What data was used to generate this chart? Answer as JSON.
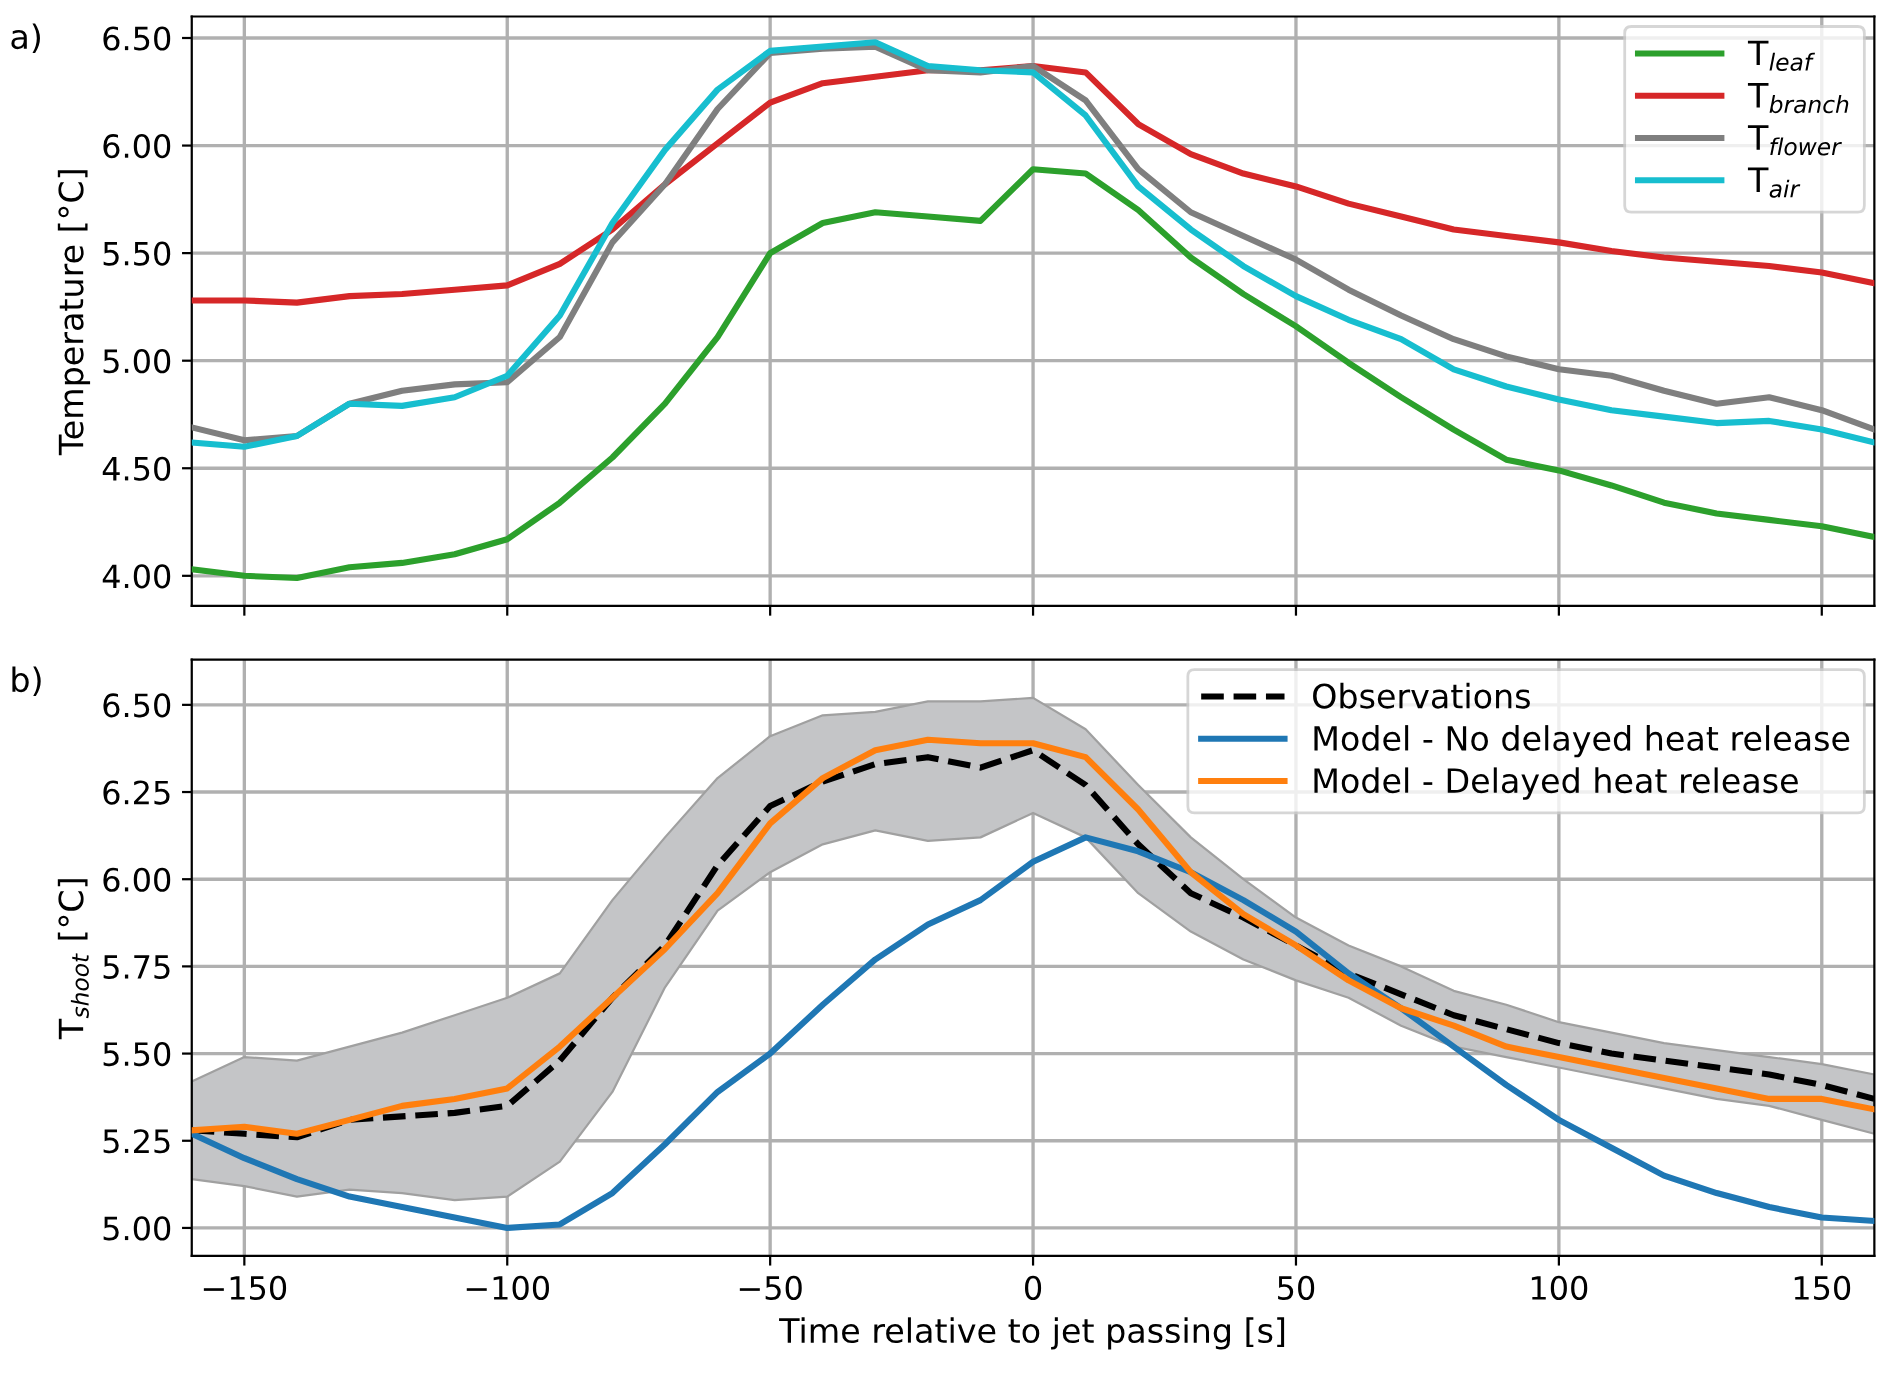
{
  "chart_data": [
    {
      "type": "line",
      "ylabel": "Temperature [°C]",
      "annotations": [
        "a)"
      ],
      "x": [
        -160,
        -150,
        -140,
        -130,
        -120,
        -110,
        -100,
        -90,
        -80,
        -70,
        -60,
        -50,
        -40,
        -30,
        -20,
        -10,
        0,
        10,
        20,
        30,
        40,
        50,
        60,
        70,
        80,
        90,
        100,
        110,
        120,
        130,
        140,
        150,
        160
      ],
      "series": [
        {
          "name": "T$_{leaf}$",
          "color": "#2ca02c",
          "values": [
            4.03,
            4.0,
            3.99,
            4.04,
            4.06,
            4.1,
            4.17,
            4.34,
            4.55,
            4.8,
            5.11,
            5.5,
            5.64,
            5.69,
            5.67,
            5.65,
            5.89,
            5.87,
            5.7,
            5.48,
            5.31,
            5.16,
            4.99,
            4.83,
            4.68,
            4.54,
            4.49,
            4.42,
            4.34,
            4.29,
            4.26,
            4.23,
            4.18
          ]
        },
        {
          "name": "T$_{branch}$",
          "color": "#d62728",
          "values": [
            5.28,
            5.28,
            5.27,
            5.3,
            5.31,
            5.33,
            5.35,
            5.45,
            5.61,
            5.82,
            6.01,
            6.2,
            6.29,
            6.32,
            6.35,
            6.35,
            6.37,
            6.34,
            6.1,
            5.96,
            5.87,
            5.81,
            5.73,
            5.67,
            5.61,
            5.58,
            5.55,
            5.51,
            5.48,
            5.46,
            5.44,
            5.41,
            5.36
          ]
        },
        {
          "name": "T$_{flower}$",
          "color": "#7f7f7f",
          "values": [
            4.69,
            4.63,
            4.65,
            4.8,
            4.86,
            4.89,
            4.9,
            5.11,
            5.55,
            5.82,
            6.17,
            6.43,
            6.45,
            6.46,
            6.35,
            6.34,
            6.37,
            6.21,
            5.89,
            5.69,
            5.58,
            5.47,
            5.33,
            5.21,
            5.1,
            5.02,
            4.96,
            4.93,
            4.86,
            4.8,
            4.83,
            4.77,
            4.68
          ]
        },
        {
          "name": "T$_{air}$",
          "color": "#17becf",
          "values": [
            4.62,
            4.6,
            4.65,
            4.8,
            4.79,
            4.83,
            4.93,
            5.21,
            5.64,
            5.98,
            6.26,
            6.44,
            6.46,
            6.48,
            6.37,
            6.35,
            6.34,
            6.14,
            5.81,
            5.61,
            5.44,
            5.3,
            5.19,
            5.1,
            4.96,
            4.88,
            4.82,
            4.77,
            4.74,
            4.71,
            4.72,
            4.68,
            4.62
          ]
        }
      ],
      "xlim": [
        -160,
        160
      ],
      "xticks": [
        {
          "value": -150,
          "label": null
        },
        {
          "value": -100,
          "label": null
        },
        {
          "value": -50,
          "label": null
        },
        {
          "value": 0,
          "label": null
        },
        {
          "value": 50,
          "label": null
        },
        {
          "value": 100,
          "label": null
        },
        {
          "value": 150,
          "label": null
        }
      ],
      "ylim": [
        3.86,
        6.6
      ],
      "yticks": [
        {
          "value": 4.0,
          "label": "4.00"
        },
        {
          "value": 4.5,
          "label": "4.50"
        },
        {
          "value": 5.0,
          "label": "5.00"
        },
        {
          "value": 5.5,
          "label": "5.50"
        },
        {
          "value": 6.0,
          "label": "6.00"
        },
        {
          "value": 6.5,
          "label": "6.50"
        }
      ],
      "tick_labels": "y",
      "grid": true,
      "legend": "top right",
      "line_style": "solid",
      "marker": "none"
    },
    {
      "type": "line",
      "xlabel": "Time relative to jet passing [s]",
      "ylabel": "T$_{shoot}$ [°C]",
      "annotations": [
        "b)"
      ],
      "x": [
        -160,
        -150,
        -140,
        -130,
        -120,
        -110,
        -100,
        -90,
        -80,
        -70,
        -60,
        -50,
        -40,
        -30,
        -20,
        -10,
        0,
        10,
        20,
        30,
        40,
        50,
        60,
        70,
        80,
        90,
        100,
        110,
        120,
        130,
        140,
        150,
        160
      ],
      "series": [
        {
          "name": "Observations",
          "color": "#000000",
          "line_style": "dashed",
          "values": [
            5.28,
            5.27,
            5.26,
            5.31,
            5.32,
            5.33,
            5.35,
            5.48,
            5.66,
            5.81,
            6.04,
            6.21,
            6.28,
            6.33,
            6.35,
            6.32,
            6.37,
            6.27,
            6.1,
            5.96,
            5.89,
            5.81,
            5.73,
            5.67,
            5.61,
            5.57,
            5.53,
            5.5,
            5.48,
            5.46,
            5.44,
            5.41,
            5.37
          ],
          "lower": [
            5.14,
            5.12,
            5.09,
            5.11,
            5.1,
            5.08,
            5.09,
            5.19,
            5.39,
            5.69,
            5.91,
            6.02,
            6.1,
            6.14,
            6.11,
            6.12,
            6.19,
            6.12,
            5.96,
            5.85,
            5.77,
            5.71,
            5.66,
            5.58,
            5.52,
            5.49,
            5.46,
            5.43,
            5.4,
            5.37,
            5.35,
            5.31,
            5.27
          ],
          "upper": [
            5.42,
            5.49,
            5.48,
            5.52,
            5.56,
            5.61,
            5.66,
            5.73,
            5.94,
            6.12,
            6.29,
            6.41,
            6.47,
            6.48,
            6.51,
            6.51,
            6.52,
            6.43,
            6.27,
            6.12,
            6.0,
            5.89,
            5.81,
            5.75,
            5.68,
            5.64,
            5.59,
            5.56,
            5.53,
            5.51,
            5.49,
            5.47,
            5.44
          ]
        },
        {
          "name": "Model - No delayed heat release",
          "color": "#1f77b4",
          "line_style": "solid",
          "values": [
            5.27,
            5.2,
            5.14,
            5.09,
            5.06,
            5.03,
            5.0,
            5.01,
            5.1,
            5.24,
            5.39,
            5.5,
            5.64,
            5.77,
            5.87,
            5.94,
            6.05,
            6.12,
            6.08,
            6.02,
            5.94,
            5.85,
            5.73,
            5.63,
            5.52,
            5.41,
            5.31,
            5.23,
            5.15,
            5.1,
            5.06,
            5.03,
            5.02
          ]
        },
        {
          "name": "Model - Delayed heat release",
          "color": "#ff7f0e",
          "line_style": "solid",
          "values": [
            5.28,
            5.29,
            5.27,
            5.31,
            5.35,
            5.37,
            5.4,
            5.52,
            5.66,
            5.8,
            5.96,
            6.16,
            6.29,
            6.37,
            6.4,
            6.39,
            6.39,
            6.35,
            6.2,
            6.02,
            5.9,
            5.81,
            5.71,
            5.63,
            5.58,
            5.52,
            5.49,
            5.46,
            5.43,
            5.4,
            5.37,
            5.37,
            5.34
          ]
        }
      ],
      "xlim": [
        -160,
        160
      ],
      "xticks": [
        {
          "value": -150,
          "label": "−150"
        },
        {
          "value": -100,
          "label": "−100"
        },
        {
          "value": -50,
          "label": "−50"
        },
        0,
        50,
        100,
        150
      ],
      "ylim": [
        4.92,
        6.63
      ],
      "yticks": [
        {
          "value": 5.0,
          "label": "5.00"
        },
        {
          "value": 5.25,
          "label": "5.25"
        },
        {
          "value": 5.5,
          "label": "5.50"
        },
        {
          "value": 5.75,
          "label": "5.75"
        },
        {
          "value": 6.0,
          "label": "6.00"
        },
        {
          "value": 6.25,
          "label": "6.25"
        },
        {
          "value": 6.5,
          "label": "6.50"
        }
      ],
      "grid": true,
      "legend": "top right",
      "marker": "none"
    }
  ]
}
